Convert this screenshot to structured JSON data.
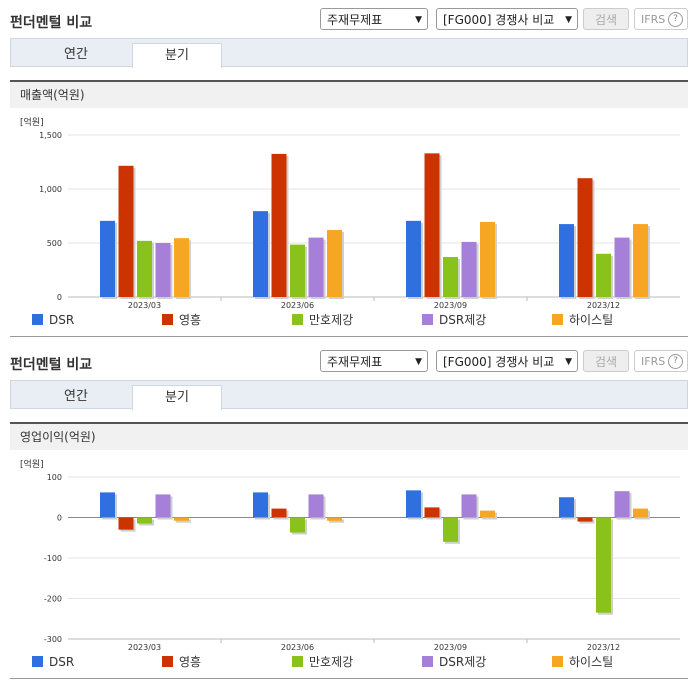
{
  "panels": [
    {
      "title": "펀더멘털 비교",
      "select1": "주재무제표",
      "select2": "[FG000] 경쟁사 비교",
      "search_label": "검색",
      "ifrs_label": "IFRS",
      "help_label": "?",
      "tabs": [
        "연간",
        "분기"
      ],
      "active_tab": "분기",
      "section_title": "매출액(억원)"
    },
    {
      "title": "펀더멘털 비교",
      "select1": "주재무제표",
      "select2": "[FG000] 경쟁사 비교",
      "search_label": "검색",
      "ifrs_label": "IFRS",
      "help_label": "?",
      "tabs": [
        "연간",
        "분기"
      ],
      "active_tab": "분기",
      "section_title": "영업이익(억원)"
    }
  ],
  "colors": {
    "DSR": "#2f6fdf",
    "영흥": "#cc3300",
    "만호제강": "#88c21a",
    "DSR제강": "#a67fd9",
    "하이스틸": "#f6a623"
  },
  "chart_data": [
    {
      "type": "bar",
      "unit_label": "[억원]",
      "categories": [
        "2023/03",
        "2023/06",
        "2023/09",
        "2023/12"
      ],
      "ylim": [
        0,
        1500
      ],
      "yticks": [
        "0",
        "500",
        "1,000",
        "1,500"
      ],
      "series": [
        {
          "name": "DSR",
          "values": [
            705,
            795,
            705,
            675
          ]
        },
        {
          "name": "영흥",
          "values": [
            1215,
            1325,
            1330,
            1100
          ]
        },
        {
          "name": "만호제강",
          "values": [
            520,
            485,
            370,
            400
          ]
        },
        {
          "name": "DSR제강",
          "values": [
            500,
            550,
            510,
            550
          ]
        },
        {
          "name": "하이스틸",
          "values": [
            545,
            620,
            695,
            675
          ]
        }
      ]
    },
    {
      "type": "bar",
      "unit_label": "[억원]",
      "categories": [
        "2023/03",
        "2023/06",
        "2023/09",
        "2023/12"
      ],
      "ylim": [
        -300,
        100
      ],
      "yticks": [
        "-300",
        "-200",
        "-100",
        "0",
        "100"
      ],
      "series": [
        {
          "name": "DSR",
          "values": [
            62,
            62,
            67,
            50
          ]
        },
        {
          "name": "영흥",
          "values": [
            -30,
            22,
            25,
            -10
          ]
        },
        {
          "name": "만호제강",
          "values": [
            -15,
            -37,
            -60,
            -235
          ]
        },
        {
          "name": "DSR제강",
          "values": [
            57,
            57,
            57,
            65
          ]
        },
        {
          "name": "하이스틸",
          "values": [
            -8,
            -8,
            17,
            22
          ]
        }
      ]
    }
  ]
}
